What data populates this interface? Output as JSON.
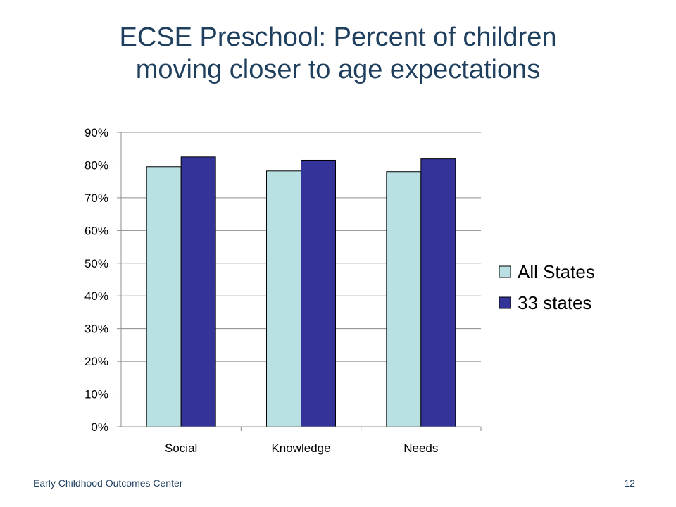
{
  "slide": {
    "title_line1": "ECSE Preschool: Percent of children",
    "title_line2": "moving closer to age expectations",
    "footer_left": "Early Childhood Outcomes Center",
    "page_number": "12"
  },
  "chart_data": {
    "type": "bar",
    "categories": [
      "Social",
      "Knowledge",
      "Needs"
    ],
    "series": [
      {
        "name": "All States",
        "values": [
          79.5,
          78.2,
          78.0
        ],
        "color": "#b9e0e3"
      },
      {
        "name": "33 states",
        "values": [
          82.5,
          81.5,
          81.9
        ],
        "color": "#333399"
      }
    ],
    "ylim": [
      0,
      90
    ],
    "yticks": [
      0,
      10,
      20,
      30,
      40,
      50,
      60,
      70,
      80,
      90
    ],
    "ytick_labels": [
      "0%",
      "10%",
      "20%",
      "30%",
      "40%",
      "50%",
      "60%",
      "70%",
      "80%",
      "90%"
    ],
    "grid": true,
    "legend": "right"
  }
}
